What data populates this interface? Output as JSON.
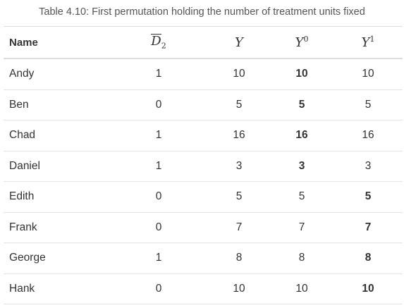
{
  "caption": "Table 4.10: First permutation holding the number of treatment units fixed",
  "headers": {
    "name": "Name",
    "d_base": "D",
    "d_sub": "2",
    "y": "Y",
    "y0_base": "Y",
    "y0_sup": "0",
    "y1_base": "Y",
    "y1_sup": "1"
  },
  "rows": [
    {
      "name": "Andy",
      "d2": "1",
      "y": "10",
      "y0": "10",
      "y1": "10",
      "bold": "y0"
    },
    {
      "name": "Ben",
      "d2": "0",
      "y": "5",
      "y0": "5",
      "y1": "5",
      "bold": "y0"
    },
    {
      "name": "Chad",
      "d2": "1",
      "y": "16",
      "y0": "16",
      "y1": "16",
      "bold": "y0"
    },
    {
      "name": "Daniel",
      "d2": "1",
      "y": "3",
      "y0": "3",
      "y1": "3",
      "bold": "y0"
    },
    {
      "name": "Edith",
      "d2": "0",
      "y": "5",
      "y0": "5",
      "y1": "5",
      "bold": "y1"
    },
    {
      "name": "Frank",
      "d2": "0",
      "y": "7",
      "y0": "7",
      "y1": "7",
      "bold": "y1"
    },
    {
      "name": "George",
      "d2": "1",
      "y": "8",
      "y0": "8",
      "y1": "8",
      "bold": "y1"
    },
    {
      "name": "Hank",
      "d2": "0",
      "y": "10",
      "y0": "10",
      "y1": "10",
      "bold": "y1"
    }
  ]
}
